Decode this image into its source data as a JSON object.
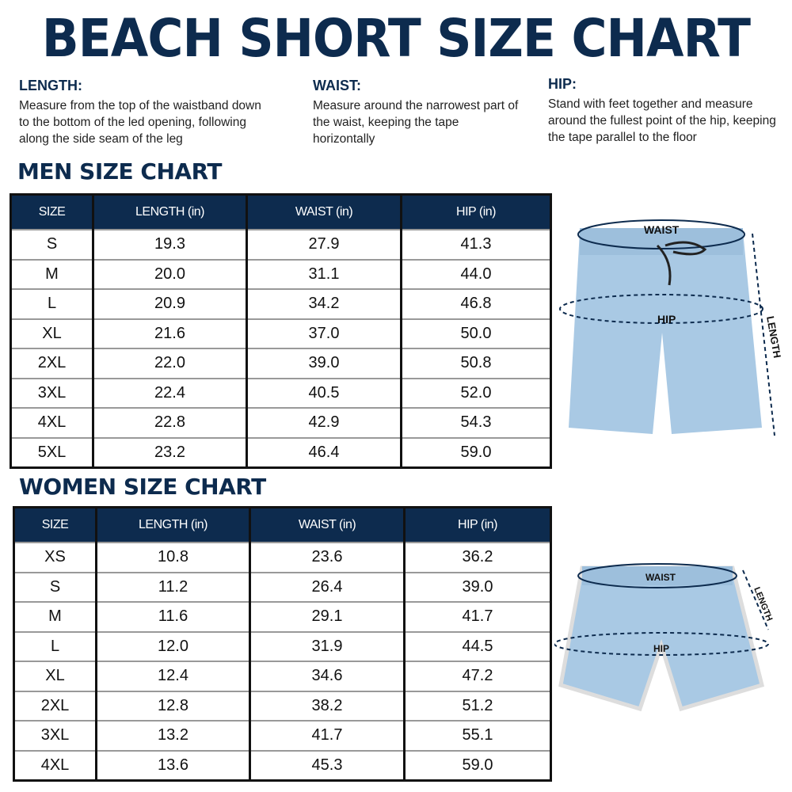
{
  "title": "BEACH SHORT SIZE CHART",
  "measures": [
    {
      "heading": "LENGTH:",
      "text": "Measure from the top of the waistband down to the bottom of the led opening, following along the side seam of the leg"
    },
    {
      "heading": "WAIST:",
      "text": "Measure around the narrowest part of the waist, keeping the tape horizontally"
    },
    {
      "heading": "HIP:",
      "text": "Stand with feet together and measure around the fullest point of the hip, keeping the tape parallel to the floor"
    }
  ],
  "columns": [
    "SIZE",
    "LENGTH (in)",
    "WAIST (in)",
    "HIP (in)"
  ],
  "men": {
    "title": "MEN SIZE CHART",
    "rows": [
      [
        "S",
        "19.3",
        "27.9",
        "41.3"
      ],
      [
        "M",
        "20.0",
        "31.1",
        "44.0"
      ],
      [
        "L",
        "20.9",
        "34.2",
        "46.8"
      ],
      [
        "XL",
        "21.6",
        "37.0",
        "50.0"
      ],
      [
        "2XL",
        "22.0",
        "39.0",
        "50.8"
      ],
      [
        "3XL",
        "22.4",
        "40.5",
        "52.0"
      ],
      [
        "4XL",
        "22.8",
        "42.9",
        "54.3"
      ],
      [
        "5XL",
        "23.2",
        "46.4",
        "59.0"
      ]
    ]
  },
  "women": {
    "title": "WOMEN SIZE CHART",
    "rows": [
      [
        "XS",
        "10.8",
        "23.6",
        "36.2"
      ],
      [
        "S",
        "11.2",
        "26.4",
        "39.0"
      ],
      [
        "M",
        "11.6",
        "29.1",
        "41.7"
      ],
      [
        "L",
        "12.0",
        "31.9",
        "44.5"
      ],
      [
        "XL",
        "12.4",
        "34.6",
        "47.2"
      ],
      [
        "2XL",
        "12.8",
        "38.2",
        "51.2"
      ],
      [
        "3XL",
        "13.2",
        "41.7",
        "55.1"
      ],
      [
        "4XL",
        "13.6",
        "45.3",
        "59.0"
      ]
    ]
  },
  "diagram_labels": {
    "waist": "WAIST",
    "hip": "HIP",
    "length": "LENGTH"
  },
  "colors": {
    "navy": "#0d2b4e",
    "shorts": "#a9c9e4"
  }
}
